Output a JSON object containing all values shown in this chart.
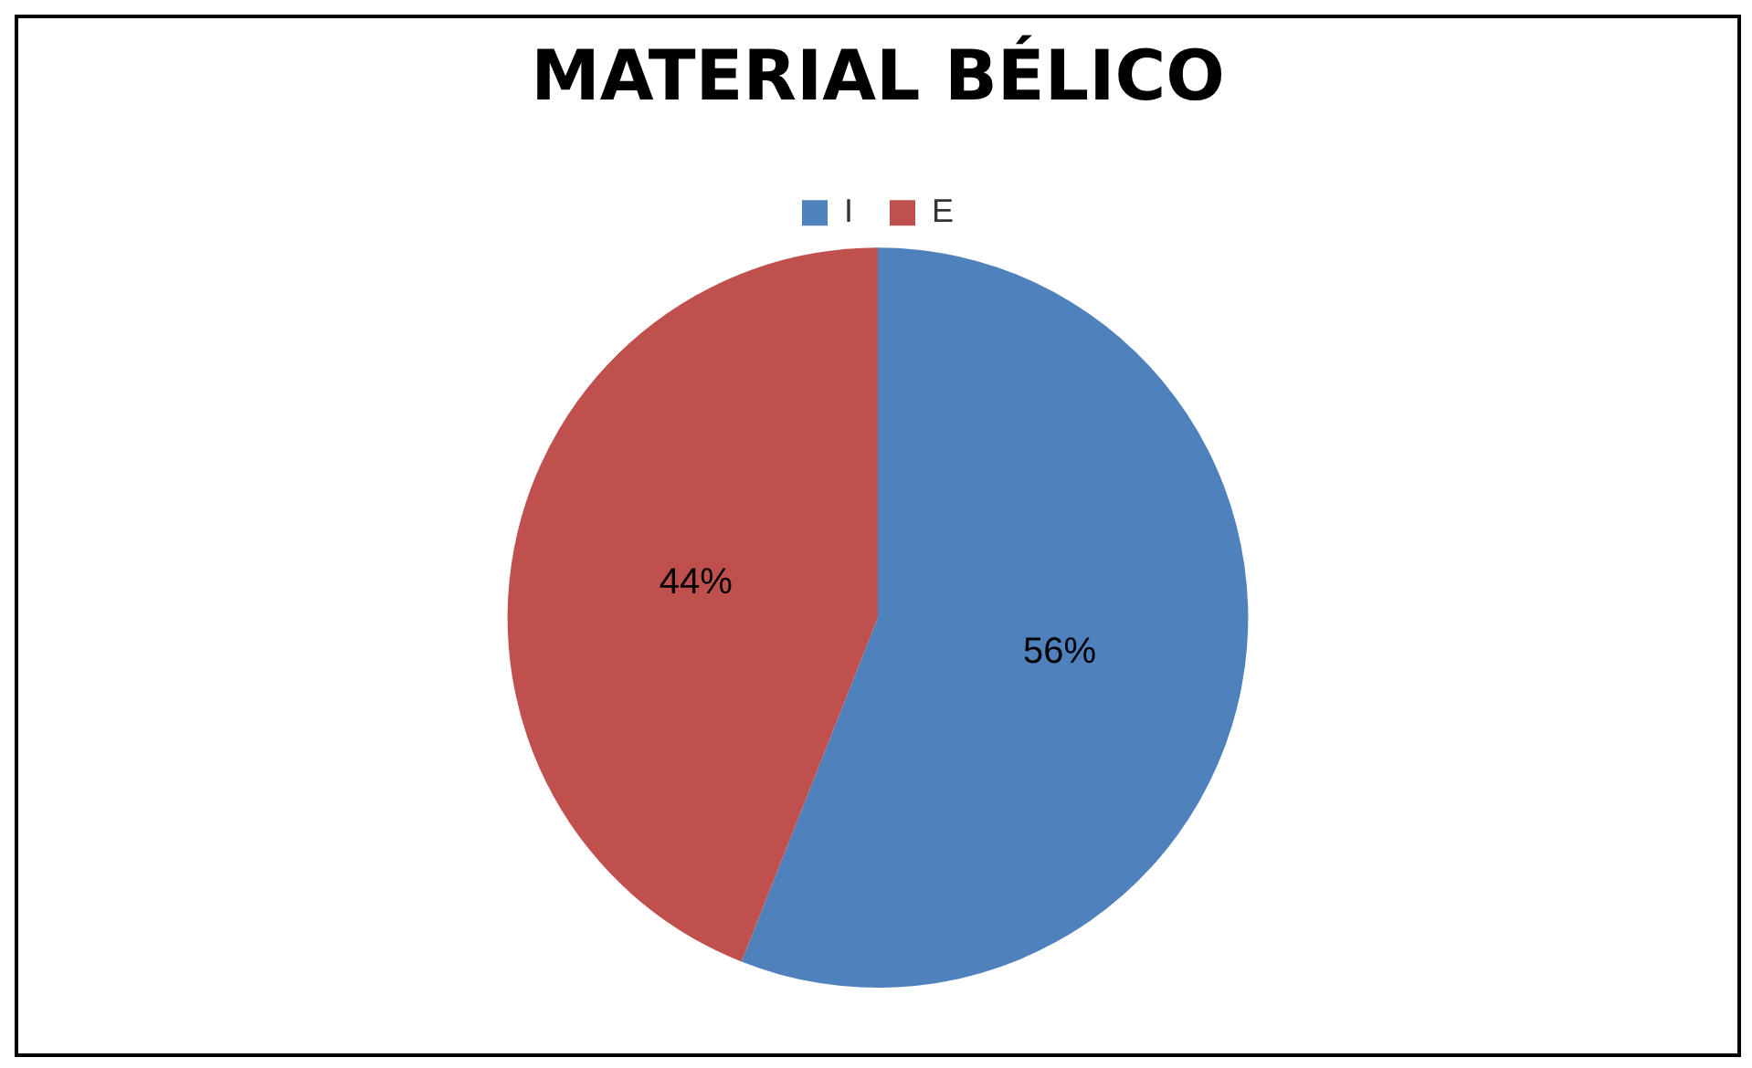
{
  "chart_data": {
    "type": "pie",
    "title": "MATERIAL BÉLICO",
    "categories": [
      "I",
      "E"
    ],
    "values": [
      56,
      44
    ],
    "colors": [
      "#4f81bd",
      "#c0504d"
    ],
    "value_labels": [
      "56%",
      "44%"
    ],
    "legend": "top"
  }
}
